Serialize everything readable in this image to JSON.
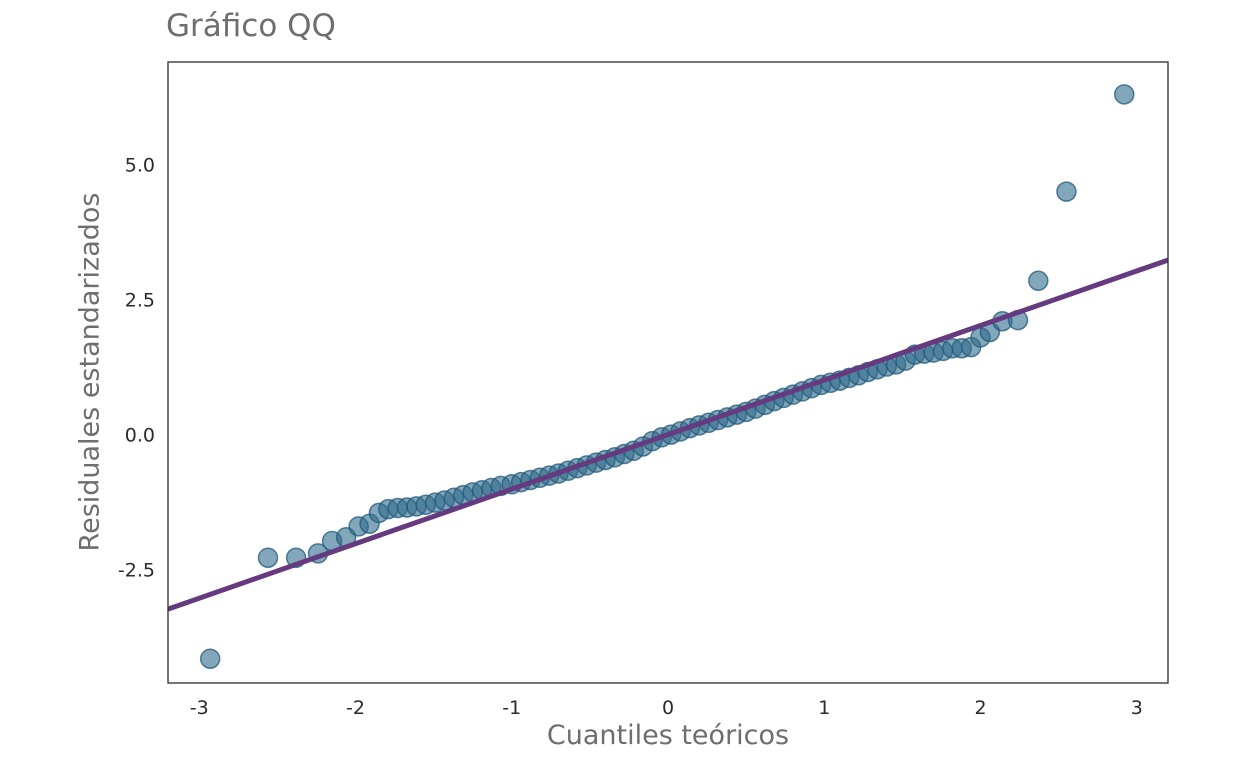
{
  "chart_data": {
    "type": "scatter",
    "title": "Gráfico QQ",
    "xlabel": "Cuantiles teóricos",
    "ylabel": "Residuales estandarizados",
    "xlim": [
      -3.2,
      3.2
    ],
    "ylim": [
      -4.6,
      6.9
    ],
    "xticks": [
      -3,
      -2,
      -1,
      0,
      1,
      2,
      3
    ],
    "xtick_labels": [
      "-3",
      "-2",
      "-1",
      "0",
      "1",
      "2",
      "3"
    ],
    "yticks": [
      -2.5,
      0.0,
      2.5,
      5.0
    ],
    "ytick_labels": [
      "-2.5",
      "0.0",
      "2.5",
      "5.0"
    ],
    "grid": false,
    "reference_line": {
      "slope": 1.01,
      "intercept": 0.0
    },
    "point_color": "#2f6a8c",
    "point_edge_color": "#1f5878",
    "line_color": "#663a7f",
    "series": [
      {
        "points": [
          [
            -2.93,
            -4.15
          ],
          [
            -2.56,
            -2.28
          ],
          [
            -2.38,
            -2.28
          ],
          [
            -2.24,
            -2.2
          ],
          [
            -2.15,
            -1.97
          ],
          [
            -2.06,
            -1.9
          ],
          [
            -1.98,
            -1.7
          ],
          [
            -1.91,
            -1.65
          ],
          [
            -1.85,
            -1.45
          ],
          [
            -1.79,
            -1.38
          ],
          [
            -1.73,
            -1.36
          ],
          [
            -1.67,
            -1.35
          ],
          [
            -1.61,
            -1.33
          ],
          [
            -1.55,
            -1.3
          ],
          [
            -1.49,
            -1.26
          ],
          [
            -1.43,
            -1.22
          ],
          [
            -1.37,
            -1.17
          ],
          [
            -1.31,
            -1.12
          ],
          [
            -1.25,
            -1.07
          ],
          [
            -1.19,
            -1.03
          ],
          [
            -1.13,
            -0.99
          ],
          [
            -1.07,
            -0.95
          ],
          [
            -1.0,
            -0.92
          ],
          [
            -0.94,
            -0.88
          ],
          [
            -0.88,
            -0.84
          ],
          [
            -0.82,
            -0.8
          ],
          [
            -0.76,
            -0.76
          ],
          [
            -0.7,
            -0.72
          ],
          [
            -0.64,
            -0.67
          ],
          [
            -0.58,
            -0.62
          ],
          [
            -0.52,
            -0.57
          ],
          [
            -0.46,
            -0.52
          ],
          [
            -0.4,
            -0.47
          ],
          [
            -0.34,
            -0.42
          ],
          [
            -0.28,
            -0.36
          ],
          [
            -0.22,
            -0.3
          ],
          [
            -0.16,
            -0.22
          ],
          [
            -0.1,
            -0.12
          ],
          [
            -0.04,
            -0.05
          ],
          [
            0.02,
            0.0
          ],
          [
            0.08,
            0.06
          ],
          [
            0.14,
            0.12
          ],
          [
            0.2,
            0.17
          ],
          [
            0.26,
            0.22
          ],
          [
            0.32,
            0.27
          ],
          [
            0.38,
            0.32
          ],
          [
            0.44,
            0.37
          ],
          [
            0.5,
            0.42
          ],
          [
            0.56,
            0.48
          ],
          [
            0.62,
            0.55
          ],
          [
            0.68,
            0.62
          ],
          [
            0.74,
            0.68
          ],
          [
            0.8,
            0.74
          ],
          [
            0.86,
            0.8
          ],
          [
            0.92,
            0.86
          ],
          [
            0.98,
            0.92
          ],
          [
            1.04,
            0.96
          ],
          [
            1.1,
            1.0
          ],
          [
            1.16,
            1.05
          ],
          [
            1.22,
            1.1
          ],
          [
            1.28,
            1.16
          ],
          [
            1.34,
            1.21
          ],
          [
            1.4,
            1.26
          ],
          [
            1.46,
            1.3
          ],
          [
            1.52,
            1.37
          ],
          [
            1.58,
            1.48
          ],
          [
            1.64,
            1.5
          ],
          [
            1.7,
            1.52
          ],
          [
            1.76,
            1.55
          ],
          [
            1.82,
            1.6
          ],
          [
            1.88,
            1.6
          ],
          [
            1.94,
            1.62
          ],
          [
            2.0,
            1.8
          ],
          [
            2.06,
            1.9
          ],
          [
            2.14,
            2.1
          ],
          [
            2.24,
            2.12
          ],
          [
            2.37,
            2.85
          ],
          [
            2.55,
            4.5
          ],
          [
            2.92,
            6.3
          ]
        ]
      }
    ]
  }
}
